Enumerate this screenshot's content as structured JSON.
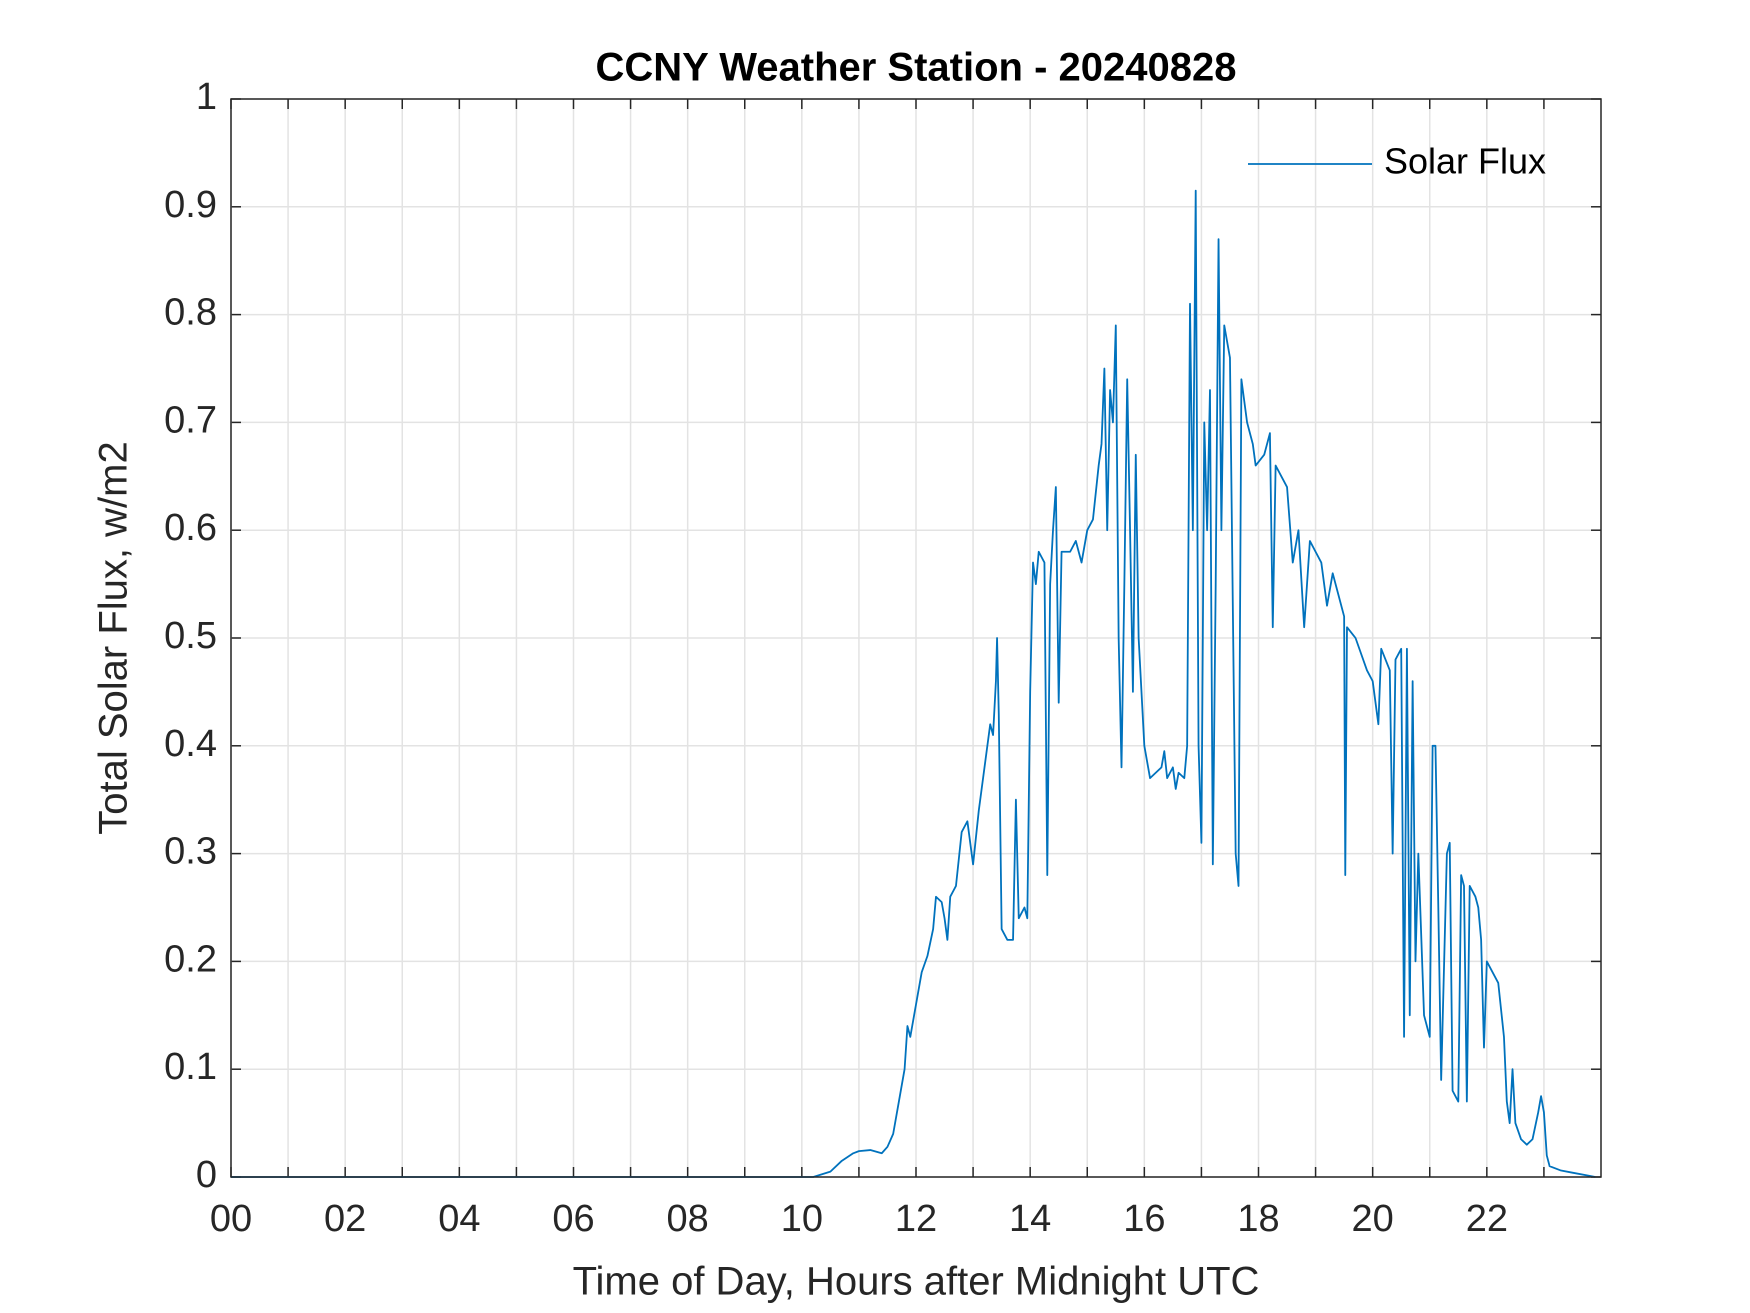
{
  "chart_data": {
    "type": "line",
    "title": "CCNY Weather Station - 20240828",
    "x_label": "Time of Day, Hours after Midnight UTC",
    "y_label": "Total Solar Flux, w/m2",
    "xlim": [
      0,
      24
    ],
    "ylim": [
      0,
      1
    ],
    "xticks": [
      {
        "value": 0,
        "label": "00"
      },
      {
        "value": 2,
        "label": "02"
      },
      {
        "value": 4,
        "label": "04"
      },
      {
        "value": 6,
        "label": "06"
      },
      {
        "value": 8,
        "label": "08"
      },
      10,
      12,
      14,
      16,
      18,
      20,
      22
    ],
    "xminorticks": [
      1,
      3,
      5,
      7,
      9,
      11,
      13,
      15,
      17,
      19,
      21,
      23
    ],
    "yticks": [
      0,
      0.1,
      0.2,
      0.3,
      0.4,
      0.5,
      0.6,
      0.7,
      0.8,
      0.9,
      1
    ],
    "grid": true,
    "legend": "upper right",
    "x": [
      0,
      10.2,
      10.5,
      10.7,
      10.9,
      11.0,
      11.2,
      11.4,
      11.5,
      11.6,
      11.7,
      11.8,
      11.85,
      11.9,
      12.0,
      12.1,
      12.2,
      12.3,
      12.35,
      12.45,
      12.5,
      12.55,
      12.6,
      12.7,
      12.8,
      12.9,
      13.0,
      13.1,
      13.2,
      13.3,
      13.35,
      13.4,
      13.42,
      13.45,
      13.5,
      13.6,
      13.7,
      13.75,
      13.8,
      13.9,
      13.95,
      14.0,
      14.05,
      14.1,
      14.15,
      14.25,
      14.3,
      14.35,
      14.4,
      14.45,
      14.5,
      14.55,
      14.7,
      14.8,
      14.9,
      15.0,
      15.1,
      15.2,
      15.25,
      15.3,
      15.35,
      15.4,
      15.45,
      15.5,
      15.55,
      15.6,
      15.65,
      15.7,
      15.75,
      15.8,
      15.85,
      15.9,
      16.0,
      16.1,
      16.3,
      16.35,
      16.4,
      16.5,
      16.55,
      16.6,
      16.7,
      16.75,
      16.8,
      16.85,
      16.9,
      16.95,
      17.0,
      17.05,
      17.1,
      17.15,
      17.2,
      17.25,
      17.3,
      17.35,
      17.4,
      17.5,
      17.6,
      17.65,
      17.7,
      17.8,
      17.9,
      17.95,
      18.1,
      18.2,
      18.25,
      18.3,
      18.5,
      18.6,
      18.7,
      18.8,
      18.9,
      19.0,
      19.1,
      19.2,
      19.3,
      19.4,
      19.5,
      19.52,
      19.55,
      19.7,
      19.9,
      20.0,
      20.1,
      20.15,
      20.3,
      20.35,
      20.4,
      20.5,
      20.55,
      20.6,
      20.65,
      20.7,
      20.75,
      20.8,
      20.9,
      21.0,
      21.05,
      21.1,
      21.15,
      21.2,
      21.3,
      21.35,
      21.4,
      21.5,
      21.55,
      21.6,
      21.65,
      21.7,
      21.8,
      21.85,
      21.9,
      21.95,
      22.0,
      22.1,
      22.2,
      22.3,
      22.35,
      22.4,
      22.45,
      22.5,
      22.6,
      22.7,
      22.8,
      22.9,
      22.95,
      23.0,
      23.05,
      23.1,
      23.3,
      23.5,
      23.8,
      23.9
    ],
    "series": [
      {
        "name": "Solar Flux",
        "color": "#0072bd",
        "values": [
          0,
          0,
          0.005,
          0.015,
          0.022,
          0.024,
          0.025,
          0.022,
          0.028,
          0.04,
          0.07,
          0.1,
          0.14,
          0.13,
          0.16,
          0.19,
          0.205,
          0.23,
          0.26,
          0.255,
          0.24,
          0.22,
          0.26,
          0.27,
          0.32,
          0.33,
          0.29,
          0.34,
          0.38,
          0.42,
          0.41,
          0.46,
          0.5,
          0.43,
          0.23,
          0.22,
          0.22,
          0.35,
          0.24,
          0.25,
          0.24,
          0.45,
          0.57,
          0.55,
          0.58,
          0.57,
          0.28,
          0.55,
          0.6,
          0.64,
          0.44,
          0.58,
          0.58,
          0.59,
          0.57,
          0.6,
          0.61,
          0.66,
          0.68,
          0.75,
          0.6,
          0.73,
          0.7,
          0.79,
          0.5,
          0.38,
          0.55,
          0.74,
          0.6,
          0.45,
          0.67,
          0.5,
          0.4,
          0.37,
          0.38,
          0.395,
          0.37,
          0.38,
          0.36,
          0.375,
          0.37,
          0.4,
          0.81,
          0.6,
          0.915,
          0.4,
          0.31,
          0.7,
          0.6,
          0.73,
          0.29,
          0.55,
          0.87,
          0.6,
          0.79,
          0.76,
          0.3,
          0.27,
          0.74,
          0.7,
          0.68,
          0.66,
          0.67,
          0.69,
          0.51,
          0.66,
          0.64,
          0.57,
          0.6,
          0.51,
          0.59,
          0.58,
          0.57,
          0.53,
          0.56,
          0.54,
          0.52,
          0.28,
          0.51,
          0.5,
          0.47,
          0.46,
          0.42,
          0.49,
          0.47,
          0.3,
          0.48,
          0.49,
          0.13,
          0.49,
          0.15,
          0.46,
          0.2,
          0.3,
          0.15,
          0.13,
          0.4,
          0.4,
          0.25,
          0.09,
          0.3,
          0.31,
          0.08,
          0.07,
          0.28,
          0.27,
          0.07,
          0.27,
          0.26,
          0.25,
          0.22,
          0.12,
          0.2,
          0.19,
          0.18,
          0.13,
          0.07,
          0.05,
          0.1,
          0.05,
          0.035,
          0.03,
          0.035,
          0.06,
          0.075,
          0.06,
          0.02,
          0.01,
          0.006,
          0.004,
          0.001,
          0
        ]
      }
    ]
  }
}
